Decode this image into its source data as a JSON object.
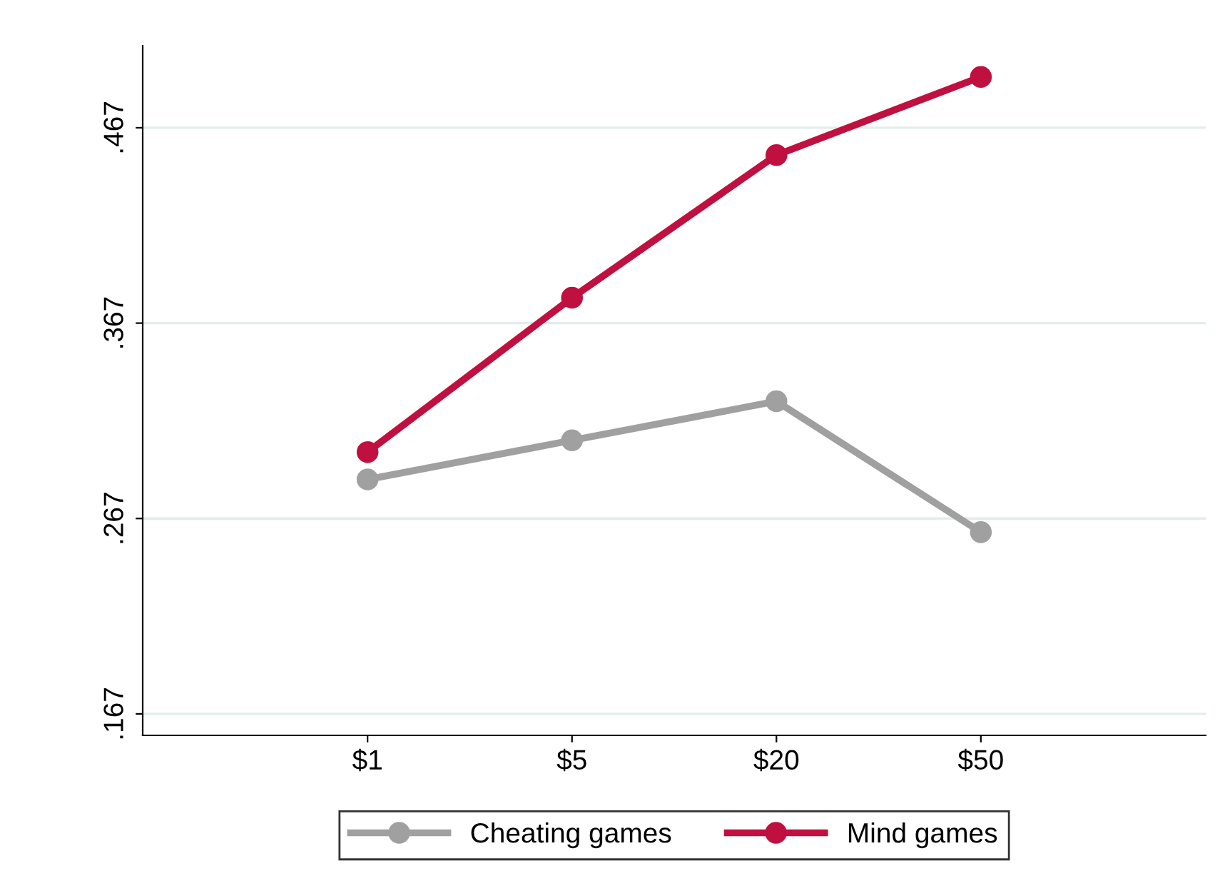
{
  "chart_data": {
    "type": "line",
    "categories": [
      "$1",
      "$5",
      "$20",
      "$50"
    ],
    "series": [
      {
        "name": "Cheating games",
        "color": "#a0a0a0",
        "values": [
          0.287,
          0.307,
          0.327,
          0.26
        ]
      },
      {
        "name": "Mind games",
        "color": "#c0103f",
        "values": [
          0.301,
          0.38,
          0.453,
          0.493
        ]
      }
    ],
    "ylim": [
      0.156,
      0.509
    ],
    "yticks": [
      {
        "value": 0.167,
        "label": ".167"
      },
      {
        "value": 0.267,
        "label": ".267"
      },
      {
        "value": 0.367,
        "label": ".367"
      },
      {
        "value": 0.467,
        "label": ".467"
      }
    ],
    "grid": "y",
    "legend": "bottom",
    "marker": "circle",
    "line_style": "solid"
  }
}
